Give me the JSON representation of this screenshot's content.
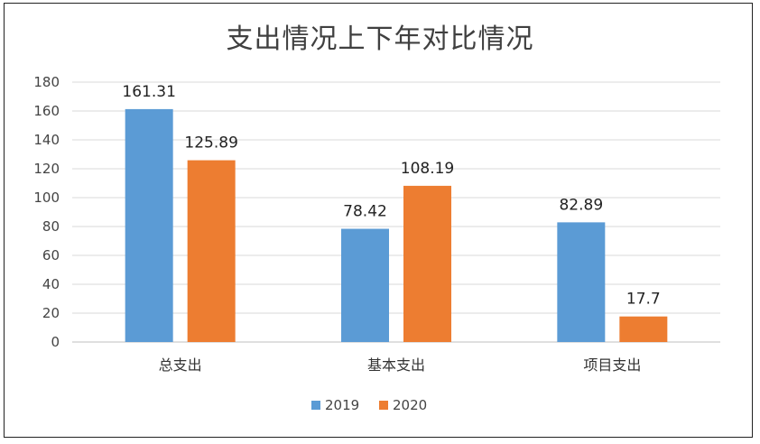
{
  "chart_data": {
    "type": "bar",
    "title": "支出情况上下年对比情况",
    "categories": [
      "总支出",
      "基本支出",
      "项目支出"
    ],
    "series": [
      {
        "name": "2019",
        "values": [
          161.31,
          78.42,
          82.89
        ],
        "color": "#5b9bd5"
      },
      {
        "name": "2020",
        "values": [
          125.89,
          108.19,
          17.7
        ],
        "color": "#ed7d31"
      }
    ],
    "ylim": [
      0,
      180
    ],
    "yticks": [
      0,
      20,
      40,
      60,
      80,
      100,
      120,
      140,
      160,
      180
    ],
    "grid": true,
    "legend": "bottom"
  }
}
